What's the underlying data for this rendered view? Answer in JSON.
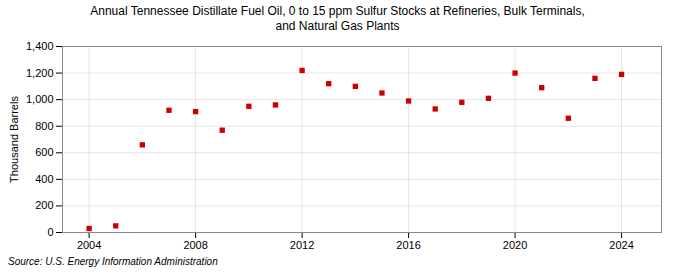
{
  "chart_data": {
    "type": "scatter",
    "title": "Annual Tennessee Distillate Fuel Oil, 0 to 15 ppm Sulfur Stocks at Refineries, Bulk Terminals,\nand Natural Gas Plants",
    "ylabel": "Thousand Barrels",
    "source": "Source: U.S. Energy Information Administration",
    "x": [
      2004,
      2005,
      2006,
      2007,
      2008,
      2009,
      2010,
      2011,
      2012,
      2013,
      2014,
      2015,
      2016,
      2017,
      2018,
      2019,
      2020,
      2021,
      2022,
      2023,
      2024
    ],
    "values": [
      30,
      50,
      660,
      920,
      910,
      770,
      950,
      960,
      1220,
      1120,
      1100,
      1050,
      990,
      930,
      980,
      1010,
      1200,
      1090,
      860,
      1160,
      1190
    ],
    "color": "#cc0000",
    "marker": "square",
    "xlim": [
      2003.0,
      2025.5
    ],
    "xticks": [
      2004,
      2008,
      2012,
      2016,
      2020,
      2024
    ],
    "ylim": [
      0,
      1400
    ],
    "yticks": [
      0,
      200,
      400,
      600,
      800,
      {
        "value": 1000,
        "label": "1,000"
      },
      {
        "value": 1200,
        "label": "1,200"
      },
      {
        "value": 1400,
        "label": "1,400"
      }
    ],
    "grid": true
  }
}
